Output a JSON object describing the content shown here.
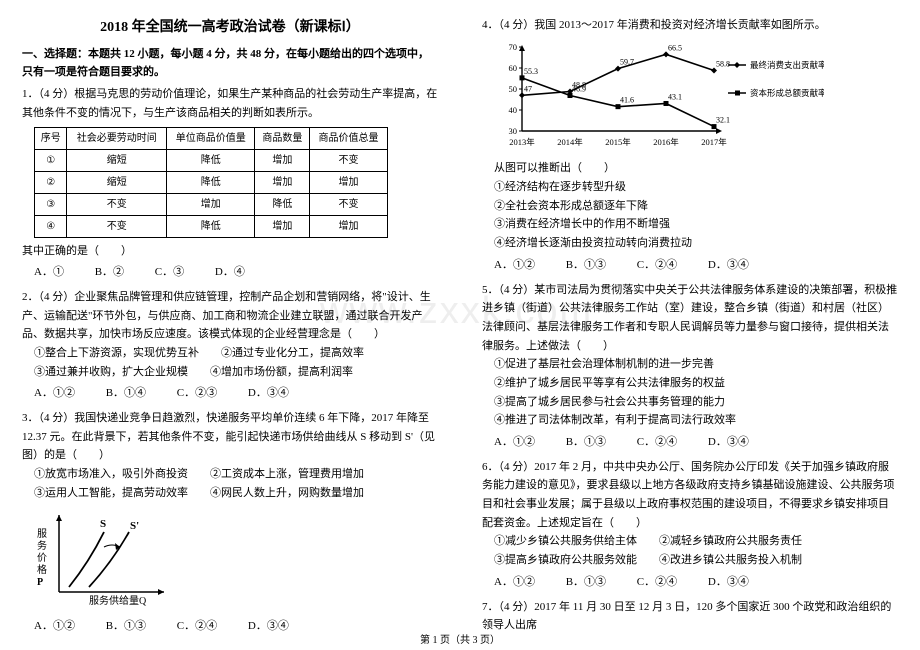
{
  "title": "2018 年全国统一高考政治试卷（新课标Ⅰ）",
  "sectionHead": "一、选择题：本题共 12 小题，每小题 4 分，共 48 分，在每小题给出的四个选项中，只有一项是符合题目要求的。",
  "watermark": "www.zxxk.com",
  "footer": "第 1 页（共 3 页）",
  "q1": {
    "stem": "1．（4 分）根据马克思的劳动价值理论，如果生产某种商品的社会劳动生产率提高，在其他条件不变的情况下，与生产该商品相关的判断如表所示。",
    "tail": "其中正确的是（　　）",
    "table": {
      "headers": [
        "序号",
        "社会必要劳动时间",
        "单位商品价值量",
        "商品数量",
        "商品价值总量"
      ],
      "rows": [
        [
          "①",
          "缩短",
          "降低",
          "增加",
          "不变"
        ],
        [
          "②",
          "缩短",
          "降低",
          "增加",
          "增加"
        ],
        [
          "③",
          "不变",
          "增加",
          "降低",
          "不变"
        ],
        [
          "④",
          "不变",
          "降低",
          "增加",
          "增加"
        ]
      ],
      "fontsize": 10,
      "border_color": "#000000"
    },
    "opts": [
      "A．①",
      "B．②",
      "C．③",
      "D．④"
    ]
  },
  "q2": {
    "stem": "2．（4 分）企业聚焦品牌管理和供应链管理，控制产品企划和营销网络，将\"设计、生产、运输配送\"环节外包，与供应商、加工商和物流企业建立联盟，通过联合开发产品、数据共享，加快市场反应速度。该模式体现的企业经营理念是（　　）",
    "items": [
      "①整合上下游资源，实现优势互补　　②通过专业化分工，提高效率",
      "③通过兼并收购，扩大企业规模　　④增加市场份额，提高利润率"
    ],
    "opts": [
      "A．①②",
      "B．①④",
      "C．②③",
      "D．③④"
    ]
  },
  "q3": {
    "stem": "3．（4 分）我国快递业竞争日趋激烈，快递服务平均单价连续 6 年下降，2017 年降至 12.37 元。在此背景下，若其他条件不变，能引起快递市场供给曲线从 S 移动到 S'（见图）的是（　　）",
    "items": [
      "①放宽市场准入，吸引外商投资　　②工资成本上涨，管理费用增加",
      "③运用人工智能，提高劳动效率　　④网民人数上升，网购数量增加"
    ],
    "opts": [
      "A．①②",
      "B．①③",
      "C．②④",
      "D．③④"
    ],
    "chart": {
      "type": "line",
      "axis_color": "#000000",
      "line_color": "#000000",
      "line_width": 1.8,
      "background": "#ffffff",
      "xlabel": "服务供给量Q",
      "ylabel": "服务价格P",
      "labels": {
        "S": "S",
        "Sp": "S'"
      },
      "label_fontsize": 11,
      "arrow_size": 5
    }
  },
  "q4": {
    "stem": "4．（4 分）我国 2013～2017 年消费和投资对经济增长贡献率如图所示。",
    "afterchart": "从图可以推断出（　　）",
    "items": [
      "①经济结构在逐步转型升级",
      "②全社会资本形成总额逐年下降",
      "③消费在经济增长中的作用不断增强",
      "④经济增长逐渐由投资拉动转向消费拉动"
    ],
    "opts": [
      "A．①②",
      "B．①③",
      "C．②④",
      "D．③④"
    ],
    "chart": {
      "type": "line",
      "categories": [
        "2013年",
        "2014年",
        "2015年",
        "2016年",
        "2017年"
      ],
      "series": [
        {
          "name": "最终消费支出贡献率",
          "color": "#000000",
          "marker": "diamond",
          "values": [
            47,
            48.8,
            59.7,
            66.5,
            58.8
          ]
        },
        {
          "name": "资本形成总额贡献率",
          "color": "#000000",
          "marker": "square",
          "values": [
            55.3,
            46.9,
            41.6,
            43.1,
            32.1
          ]
        }
      ],
      "ylim": [
        30,
        70
      ],
      "ytick_step": 10,
      "axis_color": "#000000",
      "line_width": 1.6,
      "background": "#ffffff",
      "legend_pos": "right",
      "label_fontsize": 8.5,
      "value_fontsize": 8
    }
  },
  "q5": {
    "stem": "5．（4 分）某市司法局为贯彻落实中央关于公共法律服务体系建设的决策部署，积极推进乡镇（街道）公共法律服务工作站（室）建设，整合乡镇（街道）和村居（社区）法律顾问、基层法律服务工作者和专职人民调解员等力量参与窗口接待，提供相关法律服务。上述做法（　　）",
    "items": [
      "①促进了基层社会治理体制机制的进一步完善",
      "②维护了城乡居民平等享有公共法律服务的权益",
      "③提高了城乡居民参与社会公共事务管理的能力",
      "④推进了司法体制改革，有利于提高司法行政效率"
    ],
    "opts": [
      "A．①②",
      "B．①③",
      "C．②④",
      "D．③④"
    ]
  },
  "q6": {
    "stem": "6．（4 分）2017 年 2 月，中共中央办公厅、国务院办公厅印发《关于加强乡镇政府服务能力建设的意见》，要求县级以上地方各级政府支持乡镇基础设施建设、公共服务项目和社会事业发展；属于县级以上政府事权范围的建设项目，不得要求乡镇安排项目配套资金。上述规定旨在（　　）",
    "items": [
      "①减少乡镇公共服务供给主体　　②减轻乡镇政府公共服务责任",
      "③提高乡镇政府公共服务效能　　④改进乡镇公共服务投入机制"
    ],
    "opts": [
      "A．①②",
      "B．①③",
      "C．②④",
      "D．③④"
    ]
  },
  "q7": {
    "stem": "7．（4 分）2017 年 11 月 30 日至 12 月 3 日，120 多个国家近 300 个政党和政治组织的领导人出席"
  }
}
